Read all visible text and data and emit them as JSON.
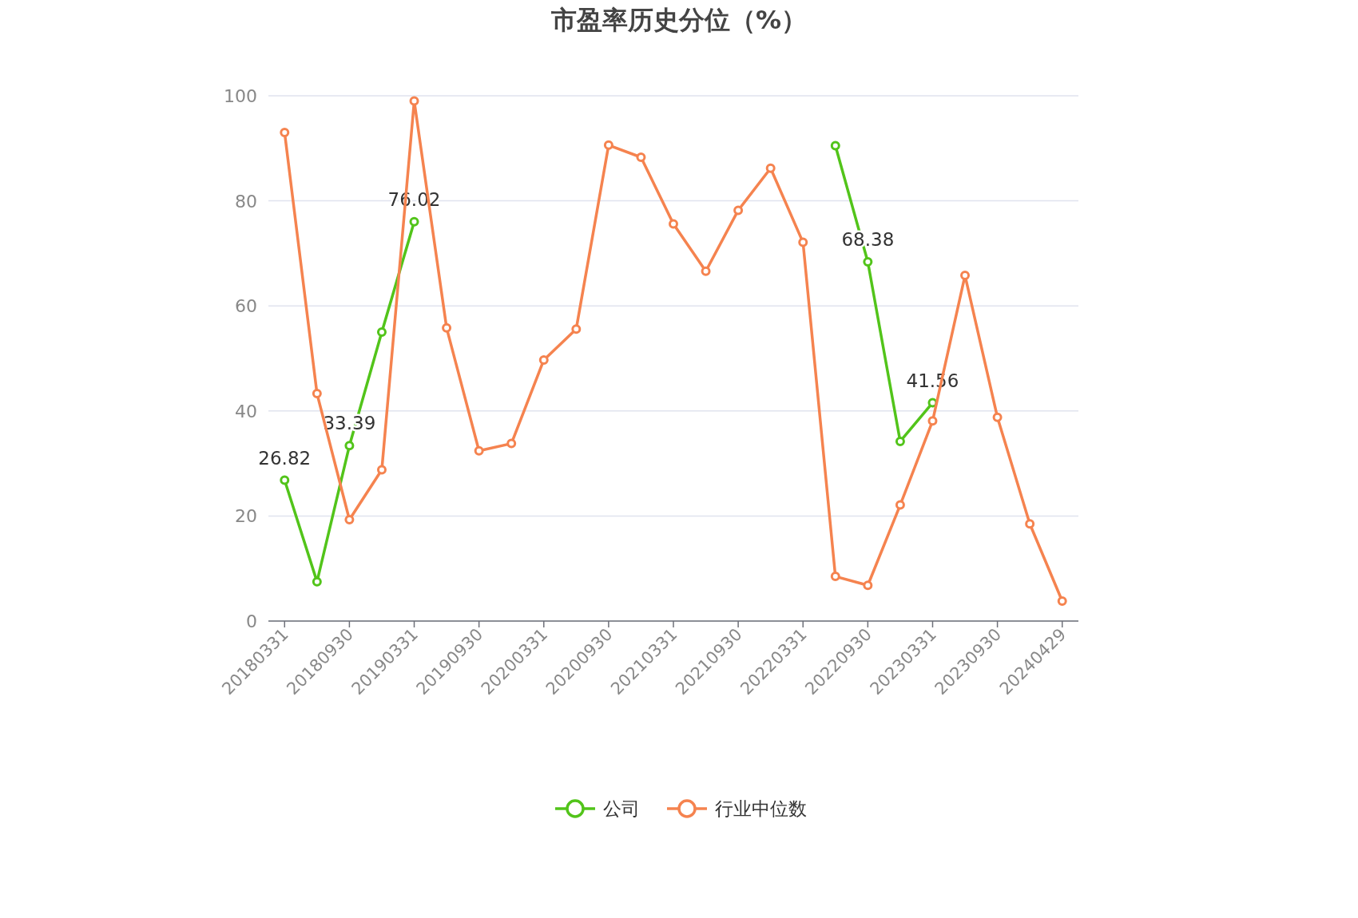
{
  "chart_data": {
    "type": "line",
    "title": "市盈率历史分位（%）",
    "categories": [
      "20180331",
      null,
      "20180930",
      null,
      "20190331",
      null,
      "20190930",
      null,
      "20200331",
      null,
      "20200930",
      null,
      "20210331",
      null,
      "20210930",
      null,
      "20220331",
      null,
      "20220930",
      null,
      "20230331",
      null,
      "20230930",
      null,
      "20240429"
    ],
    "series": [
      {
        "name": "公司",
        "color": "#52c41a",
        "values": [
          26.82,
          7.5,
          33.39,
          55,
          76.02,
          null,
          null,
          null,
          null,
          null,
          null,
          null,
          null,
          null,
          null,
          null,
          null,
          90.5,
          68.38,
          34.2,
          41.56,
          null,
          null,
          null,
          null
        ],
        "value_labels": [
          "26.82",
          null,
          "33.39",
          null,
          "76.02",
          null,
          null,
          null,
          null,
          null,
          null,
          null,
          null,
          null,
          null,
          null,
          null,
          null,
          "68.38",
          null,
          "41.56",
          null,
          null,
          null,
          null
        ]
      },
      {
        "name": "行业中位数",
        "color": "#f5834f",
        "values": [
          93,
          43.3,
          19.3,
          28.8,
          99,
          55.8,
          32.4,
          33.8,
          49.7,
          55.6,
          90.6,
          88.3,
          75.6,
          66.6,
          78.2,
          86.2,
          72.1,
          8.5,
          6.8,
          22.1,
          38.1,
          65.8,
          38.8,
          18.5,
          3.8
        ]
      }
    ],
    "ylim": [
      0,
      100
    ],
    "yticks": [
      0,
      20,
      40,
      60,
      80,
      100
    ],
    "grid": "y",
    "legend": "bottom",
    "marker": "circle"
  }
}
